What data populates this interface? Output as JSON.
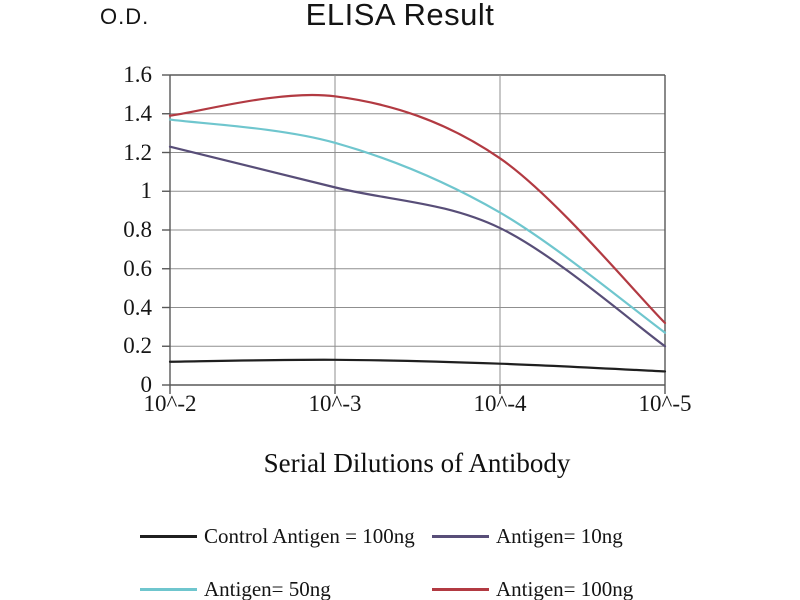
{
  "chart_data": {
    "type": "line",
    "title": "ELISA Result",
    "y_axis_label": "O.D.",
    "xlabel": "Serial Dilutions of Antibody",
    "categories": [
      "10^-2",
      "10^-3",
      "10^-4",
      "10^-5"
    ],
    "y_tick_labels_desc": [
      "1.6",
      "1.4",
      "1.2",
      "1",
      "0.8",
      "0.6",
      "0.4",
      "0.2",
      "0"
    ],
    "ylim": [
      0,
      1.6
    ],
    "grid": true,
    "legend_position": "bottom",
    "line_smoothing": "smooth",
    "colors": {
      "grid": "#8f8f8f",
      "axis": "#585858",
      "text": "#161616"
    },
    "series": [
      {
        "name": "Control Antigen = 100ng",
        "color": "#1f1f1f",
        "values": [
          0.12,
          0.13,
          0.11,
          0.07
        ]
      },
      {
        "name": "Antigen= 10ng",
        "color": "#584e78",
        "values": [
          1.23,
          1.02,
          0.81,
          0.2
        ]
      },
      {
        "name": "Antigen= 50ng",
        "color": "#6fc6ce",
        "values": [
          1.37,
          1.25,
          0.89,
          0.27
        ]
      },
      {
        "name": "Antigen= 100ng",
        "color": "#b23a42",
        "values": [
          1.39,
          1.49,
          1.17,
          0.32
        ]
      }
    ]
  }
}
